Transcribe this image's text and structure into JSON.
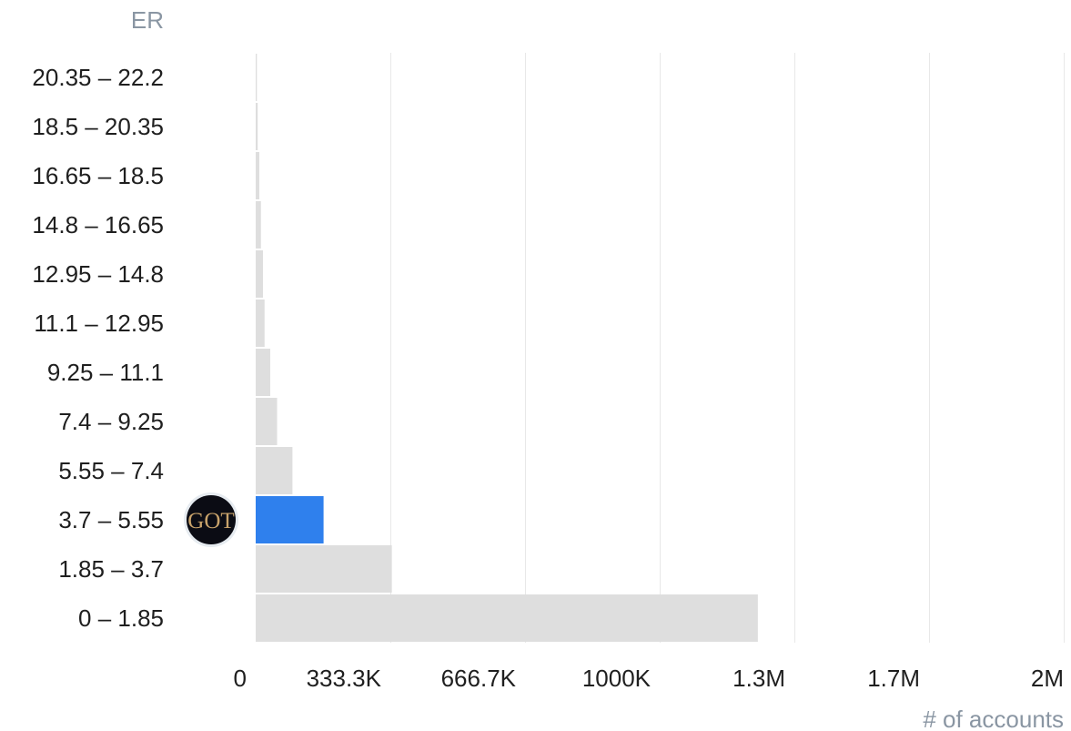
{
  "chart_data": {
    "type": "bar",
    "orientation": "horizontal",
    "ylabel": "ER",
    "xlabel": "# of accounts",
    "categories": [
      "0 – 1.85",
      "1.85 – 3.7",
      "3.7 – 5.55",
      "5.55 – 7.4",
      "7.4 – 9.25",
      "9.25 – 11.1",
      "11.1 – 12.95",
      "12.95 – 14.8",
      "14.8 – 16.65",
      "16.65 – 18.5",
      "18.5 – 20.35",
      "20.35 – 22.2"
    ],
    "values": [
      1243000,
      337000,
      168000,
      91000,
      53000,
      36000,
      22000,
      18000,
      13000,
      9000,
      5000,
      3000
    ],
    "xlim": [
      0,
      2000000
    ],
    "x_ticks": [
      0,
      333333,
      666667,
      1000000,
      1333333,
      1666667,
      2000000
    ],
    "x_tick_labels": [
      "0",
      "333.3K",
      "666.7K",
      "1000K",
      "1.3M",
      "1.7M",
      "2M"
    ],
    "highlight_category": "3.7 – 5.55",
    "highlight_marker": {
      "text": "GOT",
      "category": "3.7 – 5.55"
    },
    "grid": "vertical",
    "colors": {
      "bar": "#dedede",
      "highlight": "#2f80ed",
      "grid": "#e8e8e8",
      "axis_title": "#8a96a3",
      "label": "#1f1f1f",
      "marker_bg": "#0b0c14"
    }
  }
}
